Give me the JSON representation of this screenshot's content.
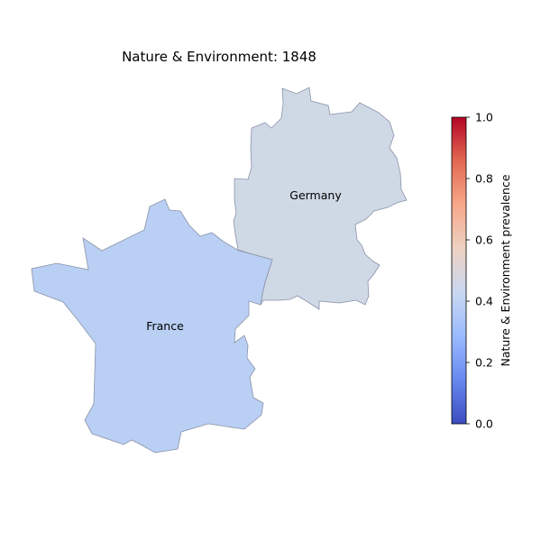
{
  "map": {
    "title": "Nature & Environment: 1848",
    "regions": [
      {
        "name": "France",
        "label": "France",
        "value": 0.32,
        "color": "#b9cff3"
      },
      {
        "name": "Germany",
        "label": "Germany",
        "value": 0.41,
        "color": "#cfd8e5"
      }
    ]
  },
  "colorbar": {
    "label": "Nature & Environment prevalence",
    "min": 0.0,
    "max": 1.0,
    "colormap": "coolwarm",
    "ticks": [
      "0.0",
      "0.2",
      "0.4",
      "0.6",
      "0.8",
      "1.0"
    ],
    "stops": [
      "#3b4cc0",
      "#6788ee",
      "#9abbff",
      "#c9d7f0",
      "#edd1c2",
      "#f7a889",
      "#e26952",
      "#b40426"
    ]
  }
}
